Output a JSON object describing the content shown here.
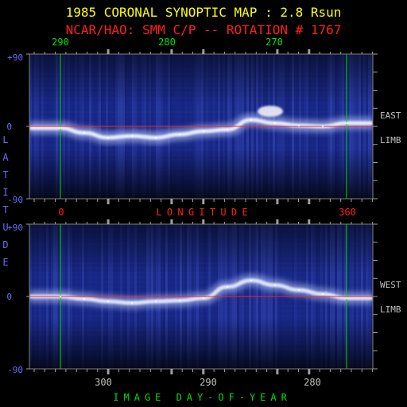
{
  "chart_data": {
    "type": "heatmap",
    "title": "1985 CORONAL SYNOPTIC MAP : 2.8 Rsun",
    "subtitle": "NCAR/HAO: SMM C/P -- ROTATION # 1767",
    "top_axis": {
      "labels": [
        "290",
        "280",
        "270"
      ],
      "color": "#00e000"
    },
    "longitude_axis": {
      "labels": [
        "0",
        "360"
      ],
      "title": "LONGITUDE",
      "color": "#ff2020"
    },
    "latitude_ticks": [
      "+90",
      "0",
      "-90"
    ],
    "y_axis_title": "LATITUDE",
    "bottom_axis": {
      "labels": [
        "300",
        "290",
        "280"
      ],
      "title": "IMAGE DAY-OF-YEAR",
      "color": "#00e000"
    },
    "top_panel_side_label": [
      "EAST",
      "LIMB"
    ],
    "bottom_panel_side_label": [
      "WEST",
      "LIMB"
    ],
    "latitude_range": [
      -90,
      90
    ],
    "equator_color": "#ff2020",
    "longitude_marker_color": "#00e000",
    "colormap": [
      "#000000",
      "#1a2a8a",
      "#3a4cc0",
      "#ffffff"
    ],
    "series": [
      {
        "name": "EAST LIMB",
        "x": [
          0,
          30,
          60,
          90,
          120,
          150,
          180,
          210,
          240,
          270,
          300,
          330,
          360
        ],
        "y": [
          -2,
          -8,
          -14,
          -12,
          -14,
          -10,
          -6,
          -4,
          8,
          4,
          1,
          0,
          4
        ]
      },
      {
        "name": "WEST LIMB",
        "x": [
          0,
          30,
          60,
          90,
          120,
          150,
          180,
          210,
          240,
          270,
          300,
          330,
          360
        ],
        "y": [
          0,
          -3,
          -6,
          -8,
          -6,
          -5,
          -2,
          12,
          20,
          14,
          8,
          3,
          -2
        ]
      }
    ]
  }
}
